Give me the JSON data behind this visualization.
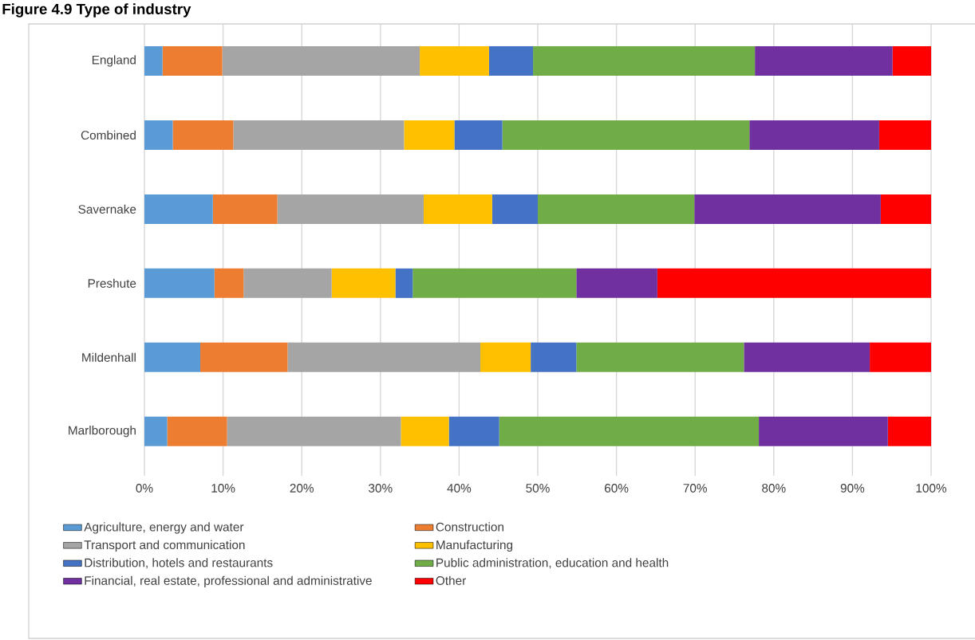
{
  "chart_data": {
    "type": "bar",
    "orientation": "horizontal",
    "stacked": true,
    "title": "Figure 4.9 Type of industry",
    "categories": [
      "England",
      "Combined",
      "Savernake",
      "Preshute",
      "Mildenhall",
      "Marlborough"
    ],
    "series": [
      {
        "name": "Agriculture, energy and water",
        "color": "#5b9bd5",
        "values": [
          2.3,
          3.6,
          8.7,
          8.9,
          7.1,
          2.9
        ]
      },
      {
        "name": "Construction",
        "color": "#ed7d31",
        "values": [
          7.6,
          7.7,
          8.2,
          3.7,
          11.1,
          7.6
        ]
      },
      {
        "name": "Transport and communication",
        "color": "#a5a5a5",
        "values": [
          25.1,
          21.7,
          18.6,
          11.2,
          24.5,
          22.1
        ]
      },
      {
        "name": "Manufacturing",
        "color": "#ffc000",
        "values": [
          8.8,
          6.4,
          8.7,
          8.1,
          6.4,
          6.1
        ]
      },
      {
        "name": "Distribution, hotels and restaurants",
        "color": "#4472c4",
        "values": [
          5.6,
          6.1,
          5.8,
          2.2,
          5.8,
          6.4
        ]
      },
      {
        "name": "Public administration, education and health",
        "color": "#70ad47",
        "values": [
          28.2,
          31.4,
          19.9,
          20.8,
          21.3,
          33.0
        ]
      },
      {
        "name": "Financial, real estate, professional and administrative",
        "color": "#7030a0",
        "values": [
          17.5,
          16.5,
          23.7,
          10.3,
          16.0,
          16.4
        ]
      },
      {
        "name": "Other",
        "color": "#ff0000",
        "values": [
          4.9,
          6.6,
          6.4,
          34.8,
          7.8,
          5.5
        ]
      }
    ],
    "xlim": [
      0,
      100
    ],
    "xticks": [
      {
        "value": 0,
        "label": "0%"
      },
      {
        "value": 10,
        "label": "10%"
      },
      {
        "value": 20,
        "label": "20%"
      },
      {
        "value": 30,
        "label": "30%"
      },
      {
        "value": 40,
        "label": "40%"
      },
      {
        "value": 50,
        "label": "50%"
      },
      {
        "value": 60,
        "label": "60%"
      },
      {
        "value": 70,
        "label": "70%"
      },
      {
        "value": 80,
        "label": "80%"
      },
      {
        "value": 90,
        "label": "90%"
      },
      {
        "value": 100,
        "label": "100%"
      }
    ],
    "grid": "x",
    "legend": "bottom"
  }
}
